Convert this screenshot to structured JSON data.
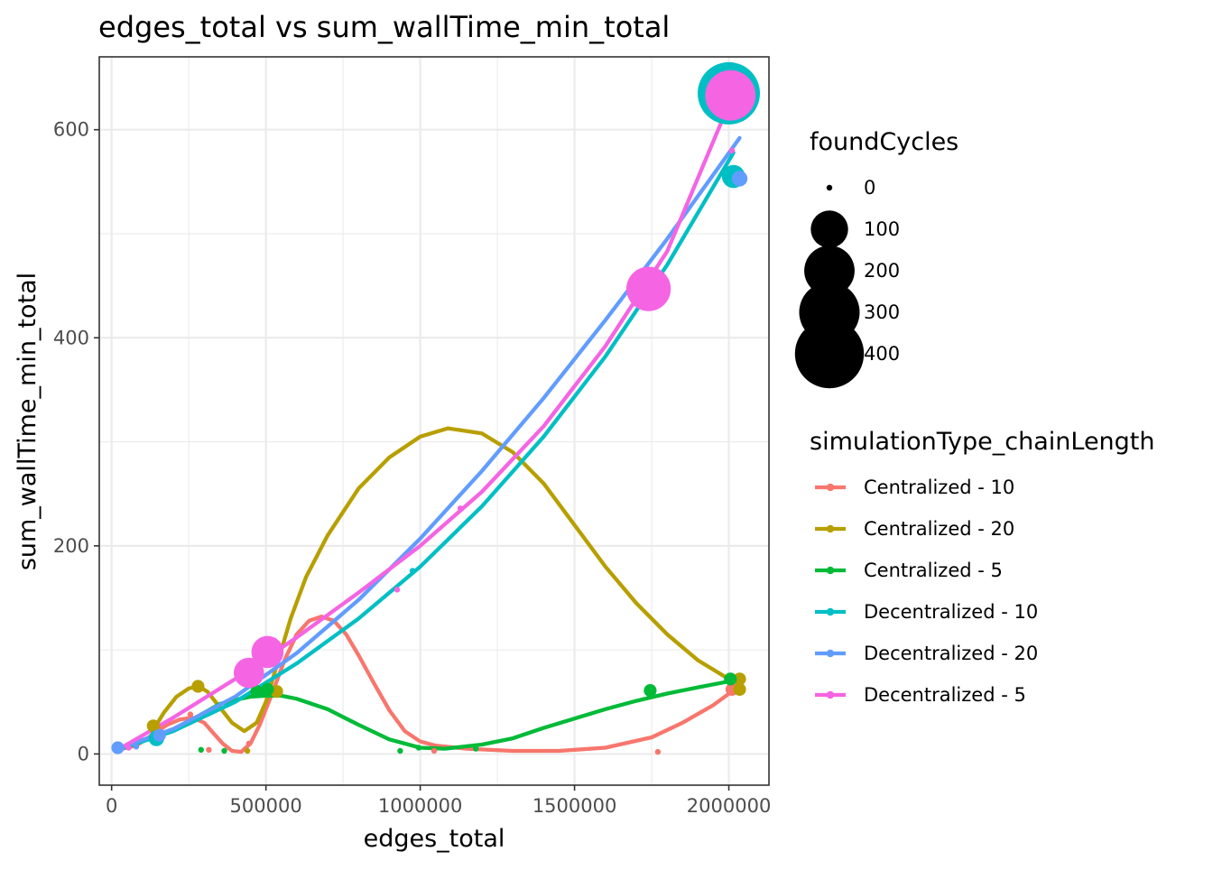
{
  "chart_data": {
    "type": "scatter",
    "title": "edges_total  vs  sum_wallTime_min_total",
    "xlabel": "edges_total",
    "ylabel": "sum_wallTime_min_total",
    "xlim": [
      -40000,
      2130000
    ],
    "ylim": [
      -30,
      670
    ],
    "x_ticks": [
      0,
      500000,
      1000000,
      1500000,
      2000000
    ],
    "x_tick_labels": [
      "0",
      "500000",
      "1000000",
      "1500000",
      "2000000"
    ],
    "y_ticks": [
      0,
      200,
      400,
      600
    ],
    "y_tick_labels": [
      "0",
      "200",
      "400",
      "600"
    ],
    "grid": true,
    "legend_position": "right",
    "size_legend": {
      "title": "foundCycles",
      "values": [
        0,
        100,
        200,
        300,
        400
      ],
      "labels": [
        "0",
        "100",
        "200",
        "300",
        "400"
      ]
    },
    "color_legend": {
      "title": "simulationType_chainLength"
    },
    "series": [
      {
        "name": "Centralized - 10",
        "color": "#F8766D",
        "points": [
          {
            "x": 20000,
            "y": 4,
            "size": 0
          },
          {
            "x": 140000,
            "y": 25,
            "size": 5
          },
          {
            "x": 255000,
            "y": 38,
            "size": 0
          },
          {
            "x": 315000,
            "y": 4,
            "size": 0
          },
          {
            "x": 445000,
            "y": 10,
            "size": 0
          },
          {
            "x": 1045000,
            "y": 3,
            "size": 0
          },
          {
            "x": 1770000,
            "y": 2,
            "size": 0
          },
          {
            "x": 2010000,
            "y": 62,
            "size": 5
          }
        ],
        "smooth": [
          [
            20000,
            4
          ],
          [
            80000,
            8
          ],
          [
            130000,
            18
          ],
          [
            180000,
            28
          ],
          [
            220000,
            33
          ],
          [
            260000,
            35
          ],
          [
            300000,
            30
          ],
          [
            330000,
            20
          ],
          [
            360000,
            10
          ],
          [
            390000,
            3
          ],
          [
            420000,
            2
          ],
          [
            450000,
            10
          ],
          [
            480000,
            28
          ],
          [
            520000,
            58
          ],
          [
            560000,
            90
          ],
          [
            600000,
            115
          ],
          [
            640000,
            128
          ],
          [
            680000,
            132
          ],
          [
            720000,
            128
          ],
          [
            760000,
            115
          ],
          [
            800000,
            95
          ],
          [
            850000,
            68
          ],
          [
            900000,
            42
          ],
          [
            950000,
            22
          ],
          [
            1000000,
            12
          ],
          [
            1050000,
            8
          ],
          [
            1150000,
            5
          ],
          [
            1300000,
            3
          ],
          [
            1450000,
            3
          ],
          [
            1600000,
            6
          ],
          [
            1750000,
            16
          ],
          [
            1850000,
            30
          ],
          [
            1950000,
            47
          ],
          [
            2010000,
            60
          ]
        ]
      },
      {
        "name": "Centralized - 20",
        "color": "#B79F00",
        "points": [
          {
            "x": 135000,
            "y": 27,
            "size": 5
          },
          {
            "x": 280000,
            "y": 65,
            "size": 5
          },
          {
            "x": 440000,
            "y": 3,
            "size": 0
          },
          {
            "x": 535000,
            "y": 60,
            "size": 5
          },
          {
            "x": 2035000,
            "y": 72,
            "size": 5
          },
          {
            "x": 2035000,
            "y": 62,
            "size": 5
          }
        ],
        "smooth": [
          [
            135000,
            23
          ],
          [
            170000,
            40
          ],
          [
            210000,
            55
          ],
          [
            250000,
            63
          ],
          [
            280000,
            65
          ],
          [
            310000,
            60
          ],
          [
            350000,
            45
          ],
          [
            390000,
            30
          ],
          [
            430000,
            22
          ],
          [
            470000,
            30
          ],
          [
            500000,
            50
          ],
          [
            540000,
            90
          ],
          [
            580000,
            130
          ],
          [
            630000,
            170
          ],
          [
            700000,
            210
          ],
          [
            800000,
            255
          ],
          [
            900000,
            285
          ],
          [
            1000000,
            305
          ],
          [
            1090000,
            313
          ],
          [
            1200000,
            308
          ],
          [
            1300000,
            290
          ],
          [
            1400000,
            260
          ],
          [
            1500000,
            220
          ],
          [
            1600000,
            180
          ],
          [
            1700000,
            145
          ],
          [
            1800000,
            115
          ],
          [
            1900000,
            90
          ],
          [
            2000000,
            72
          ],
          [
            2035000,
            68
          ]
        ]
      },
      {
        "name": "Centralized - 5",
        "color": "#00BA38",
        "points": [
          {
            "x": 290000,
            "y": 4,
            "size": 0
          },
          {
            "x": 365000,
            "y": 3,
            "size": 0
          },
          {
            "x": 470000,
            "y": 60,
            "size": 5
          },
          {
            "x": 505000,
            "y": 62,
            "size": 5
          },
          {
            "x": 935000,
            "y": 3,
            "size": 0
          },
          {
            "x": 995000,
            "y": 6,
            "size": 0
          },
          {
            "x": 1180000,
            "y": 5,
            "size": 0
          },
          {
            "x": 1745000,
            "y": 61,
            "size": 5
          },
          {
            "x": 2005000,
            "y": 72,
            "size": 5
          }
        ],
        "smooth": [
          [
            290000,
            38
          ],
          [
            350000,
            48
          ],
          [
            400000,
            52
          ],
          [
            450000,
            55
          ],
          [
            500000,
            56
          ],
          [
            550000,
            56
          ],
          [
            600000,
            53
          ],
          [
            700000,
            43
          ],
          [
            800000,
            28
          ],
          [
            900000,
            14
          ],
          [
            1000000,
            6
          ],
          [
            1080000,
            5
          ],
          [
            1200000,
            9
          ],
          [
            1300000,
            15
          ],
          [
            1400000,
            25
          ],
          [
            1500000,
            34
          ],
          [
            1600000,
            43
          ],
          [
            1700000,
            51
          ],
          [
            1800000,
            58
          ],
          [
            1900000,
            64
          ],
          [
            2005000,
            70
          ]
        ]
      },
      {
        "name": "Decentralized - 10",
        "color": "#00BFC4",
        "points": [
          {
            "x": 20000,
            "y": 5,
            "size": 0
          },
          {
            "x": 145000,
            "y": 15,
            "size": 10
          },
          {
            "x": 975000,
            "y": 176,
            "size": 0
          },
          {
            "x": 2000000,
            "y": 635,
            "size": 320
          },
          {
            "x": 2015000,
            "y": 555,
            "size": 30
          }
        ],
        "smooth": [
          [
            20000,
            4
          ],
          [
            200000,
            22
          ],
          [
            400000,
            50
          ],
          [
            600000,
            87
          ],
          [
            800000,
            130
          ],
          [
            1000000,
            180
          ],
          [
            1200000,
            238
          ],
          [
            1400000,
            305
          ],
          [
            1600000,
            382
          ],
          [
            1800000,
            470
          ],
          [
            2015000,
            578
          ]
        ]
      },
      {
        "name": "Decentralized - 20",
        "color": "#619CFF",
        "points": [
          {
            "x": 20000,
            "y": 6,
            "size": 5
          },
          {
            "x": 80000,
            "y": 7,
            "size": 0
          },
          {
            "x": 155000,
            "y": 18,
            "size": 5
          },
          {
            "x": 2030000,
            "y": 632,
            "size": 40
          },
          {
            "x": 2035000,
            "y": 553,
            "size": 10
          }
        ],
        "smooth": [
          [
            20000,
            5
          ],
          [
            200000,
            24
          ],
          [
            400000,
            55
          ],
          [
            600000,
            97
          ],
          [
            800000,
            148
          ],
          [
            1000000,
            207
          ],
          [
            1200000,
            272
          ],
          [
            1400000,
            342
          ],
          [
            1600000,
            417
          ],
          [
            1800000,
            495
          ],
          [
            2035000,
            592
          ]
        ]
      },
      {
        "name": "Decentralized - 5",
        "color": "#F564E3",
        "points": [
          {
            "x": 55000,
            "y": 6,
            "size": 0
          },
          {
            "x": 445000,
            "y": 78,
            "size": 60
          },
          {
            "x": 505000,
            "y": 98,
            "size": 70
          },
          {
            "x": 925000,
            "y": 158,
            "size": 0
          },
          {
            "x": 1130000,
            "y": 236,
            "size": 0
          },
          {
            "x": 1740000,
            "y": 447,
            "size": 150
          },
          {
            "x": 2005000,
            "y": 633,
            "size": 200
          },
          {
            "x": 2010000,
            "y": 580,
            "size": 0
          }
        ],
        "smooth": [
          [
            20000,
            4
          ],
          [
            200000,
            35
          ],
          [
            400000,
            72
          ],
          [
            600000,
            112
          ],
          [
            800000,
            155
          ],
          [
            1000000,
            200
          ],
          [
            1200000,
            252
          ],
          [
            1400000,
            315
          ],
          [
            1600000,
            392
          ],
          [
            1800000,
            483
          ],
          [
            2005000,
            628
          ]
        ]
      }
    ]
  }
}
